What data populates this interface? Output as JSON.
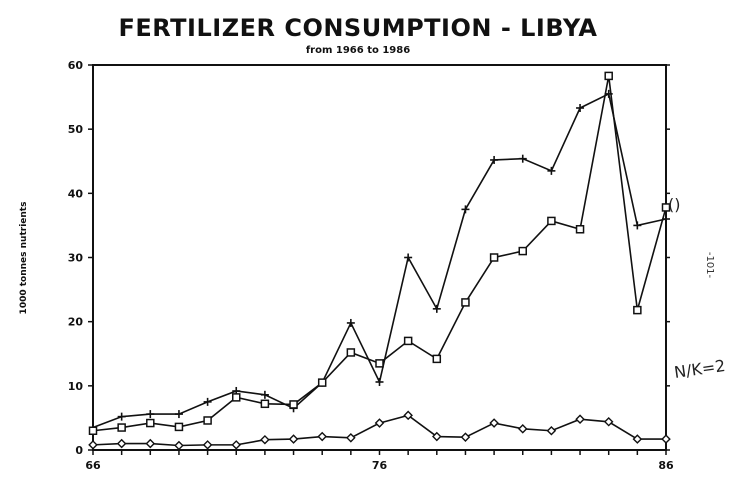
{
  "chart_data": {
    "type": "line",
    "title": "FERTILIZER CONSUMPTION  -  LIBYA",
    "subtitle": "from 1966 to 1986",
    "xlabel": "",
    "ylabel": "1000 tonnes nutrients",
    "x": [
      66,
      67,
      68,
      69,
      70,
      71,
      72,
      73,
      74,
      75,
      76,
      77,
      78,
      79,
      80,
      81,
      82,
      83,
      84,
      85,
      86
    ],
    "x_ticks": [
      "66",
      "76",
      "86"
    ],
    "xlim": [
      66,
      86
    ],
    "ylim": [
      0,
      60
    ],
    "y_ticks": [
      "0",
      "10",
      "20",
      "30",
      "40",
      "50",
      "60"
    ],
    "grid": false,
    "series": [
      {
        "marker": "plus",
        "values": [
          3.5,
          5.2,
          5.6,
          5.6,
          7.5,
          9.2,
          8.6,
          6.5,
          10.5,
          19.8,
          10.6,
          30.0,
          22.0,
          37.5,
          45.2,
          45.4,
          43.5,
          53.3,
          55.5,
          35.0,
          36.0
        ]
      },
      {
        "marker": "square",
        "values": [
          3.0,
          3.5,
          4.2,
          3.6,
          4.6,
          8.2,
          7.2,
          7.1,
          10.5,
          15.2,
          13.5,
          17.0,
          14.2,
          23.0,
          30.0,
          31.0,
          35.7,
          34.4,
          58.3,
          21.8,
          37.8
        ]
      },
      {
        "marker": "diamond",
        "values": [
          0.8,
          1.0,
          1.0,
          0.7,
          0.8,
          0.8,
          1.6,
          1.7,
          2.1,
          1.9,
          4.2,
          5.4,
          2.1,
          2.0,
          4.2,
          3.3,
          3.0,
          4.8,
          4.4,
          1.7,
          1.7
        ]
      }
    ]
  },
  "annotations": {
    "circle_mark": "()",
    "handwritten_note": "N/K=2",
    "page_number": "-101-"
  }
}
